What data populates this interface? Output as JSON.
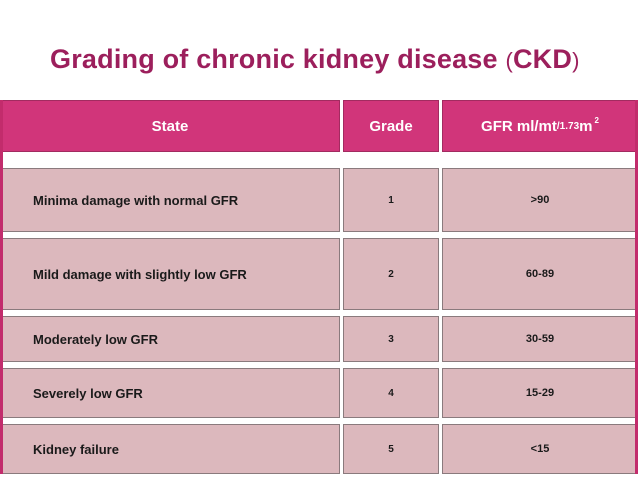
{
  "title": {
    "main": "Grading of chronic kidney disease ",
    "open_paren": "(",
    "abbr": "CKD",
    "close_paren": ")"
  },
  "table": {
    "headers": {
      "state": "State",
      "grade": "Grade",
      "gfr_main": "GFR ml/mt",
      "gfr_sub": "/1.73",
      "gfr_unit": "m",
      "gfr_sup": "2"
    },
    "rows": [
      {
        "state": "Minima damage with normal GFR",
        "grade": "1",
        "gfr": ">90"
      },
      {
        "state": "Mild damage with slightly low GFR",
        "grade": "2",
        "gfr": "60-89"
      },
      {
        "state": "Moderately low GFR",
        "grade": "3",
        "gfr": "30-59"
      },
      {
        "state": "Severely low GFR",
        "grade": "4",
        "gfr": "15-29"
      },
      {
        "state": "Kidney failure",
        "grade": "5",
        "gfr": "<15"
      }
    ]
  },
  "colors": {
    "title": "#9c1f5c",
    "header_bg": "#d1357a",
    "row_bg": "#dcb8bd"
  }
}
